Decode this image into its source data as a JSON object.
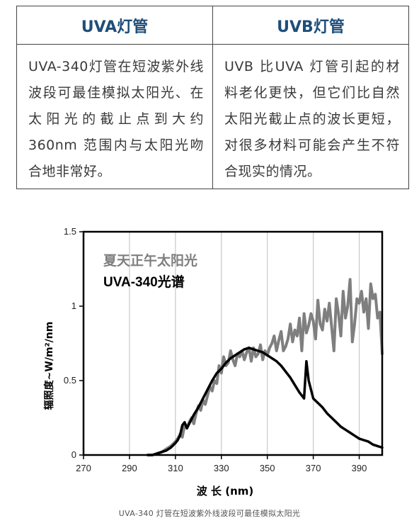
{
  "table": {
    "headers": [
      "UVA灯管",
      "UVB灯管"
    ],
    "cells": [
      "UVA-340灯管在短波紫外线波段可最佳模拟太阳光、在太阳光的截止点到大约 360nm 范围内与太阳光吻合地非常好。",
      "UVB 比UVA 灯管引起的材料老化更快，但它们比自然太阳光截止点的波长更短，对很多材料可能会产生不符合现实的情况。"
    ]
  },
  "chart_data": {
    "type": "line",
    "xlabel": "波 长 (nm)",
    "ylabel": "辐照度~W/m²/nm",
    "xlim": [
      270,
      400
    ],
    "ylim": [
      0,
      1.5
    ],
    "xticks": [
      270,
      290,
      310,
      330,
      350,
      370,
      390
    ],
    "yticks": [
      0,
      0.5,
      1,
      1.5
    ],
    "ytick_labels": [
      "0",
      "0.5",
      "1",
      "1.5"
    ],
    "vertical_gridlines_at": [
      290,
      310,
      330,
      350,
      370,
      390
    ],
    "legend_placement": "top-left",
    "series": [
      {
        "name": "夏天正午太阳光",
        "color": "#7f7f7f",
        "x": [
          298,
          300,
          302,
          304,
          306,
          308,
          310,
          311,
          312,
          313,
          314,
          315,
          316,
          317,
          318,
          319,
          320,
          321,
          322,
          323,
          324,
          325,
          326,
          327,
          328,
          329,
          330,
          331,
          332,
          333,
          334,
          335,
          336,
          337,
          338,
          339,
          340,
          341,
          342,
          343,
          344,
          345,
          346,
          347,
          348,
          349,
          350,
          351,
          352,
          353,
          354,
          355,
          356,
          357,
          358,
          359,
          360,
          361,
          362,
          363,
          364,
          365,
          366,
          367,
          368,
          369,
          370,
          371,
          372,
          373,
          374,
          375,
          376,
          377,
          378,
          379,
          380,
          381,
          382,
          383,
          384,
          385,
          386,
          387,
          388,
          389,
          390,
          391,
          392,
          393,
          394,
          395,
          396,
          397,
          398,
          399,
          400
        ],
        "values": [
          0.0,
          0.0,
          0.01,
          0.02,
          0.04,
          0.06,
          0.09,
          0.11,
          0.14,
          0.12,
          0.2,
          0.18,
          0.22,
          0.25,
          0.21,
          0.28,
          0.33,
          0.3,
          0.37,
          0.34,
          0.4,
          0.46,
          0.43,
          0.5,
          0.48,
          0.6,
          0.55,
          0.66,
          0.6,
          0.62,
          0.7,
          0.64,
          0.6,
          0.68,
          0.66,
          0.7,
          0.64,
          0.69,
          0.72,
          0.63,
          0.72,
          0.66,
          0.68,
          0.74,
          0.64,
          0.7,
          0.67,
          0.72,
          0.75,
          0.8,
          0.7,
          0.77,
          0.83,
          0.7,
          0.73,
          0.78,
          0.88,
          0.76,
          0.84,
          0.8,
          0.92,
          0.7,
          0.95,
          0.82,
          0.87,
          0.95,
          0.9,
          0.78,
          1.04,
          0.88,
          0.84,
          0.98,
          0.9,
          1.02,
          0.86,
          0.7,
          1.05,
          0.95,
          0.8,
          1.1,
          0.92,
          1.0,
          1.18,
          0.76,
          0.88,
          1.05,
          1.02,
          1.1,
          0.96,
          1.05,
          0.85,
          1.15,
          1.05,
          1.08,
          0.92,
          0.96,
          0.68
        ]
      },
      {
        "name": "UVA-340光谱",
        "color": "#000000",
        "x": [
          298,
          300,
          302,
          304,
          306,
          308,
          310,
          311,
          312,
          313,
          314,
          315,
          316,
          318,
          320,
          322,
          324,
          326,
          328,
          330,
          332,
          334,
          336,
          338,
          340,
          342,
          344,
          346,
          348,
          350,
          352,
          354,
          356,
          358,
          360,
          362,
          364,
          366,
          367,
          368,
          370,
          372,
          374,
          376,
          378,
          380,
          382,
          384,
          386,
          388,
          390,
          392,
          394,
          396,
          398,
          400
        ],
        "values": [
          0.0,
          0.0,
          0.01,
          0.02,
          0.03,
          0.05,
          0.08,
          0.1,
          0.13,
          0.2,
          0.22,
          0.18,
          0.21,
          0.27,
          0.32,
          0.38,
          0.44,
          0.5,
          0.55,
          0.58,
          0.62,
          0.65,
          0.67,
          0.69,
          0.71,
          0.72,
          0.71,
          0.7,
          0.69,
          0.67,
          0.65,
          0.63,
          0.6,
          0.56,
          0.52,
          0.47,
          0.42,
          0.38,
          0.63,
          0.5,
          0.38,
          0.35,
          0.32,
          0.28,
          0.25,
          0.22,
          0.19,
          0.17,
          0.15,
          0.13,
          0.11,
          0.1,
          0.09,
          0.07,
          0.06,
          0.05
        ]
      }
    ]
  },
  "caption": "UVA-340 灯管在短波紫外线波段可最佳模拟太阳光"
}
